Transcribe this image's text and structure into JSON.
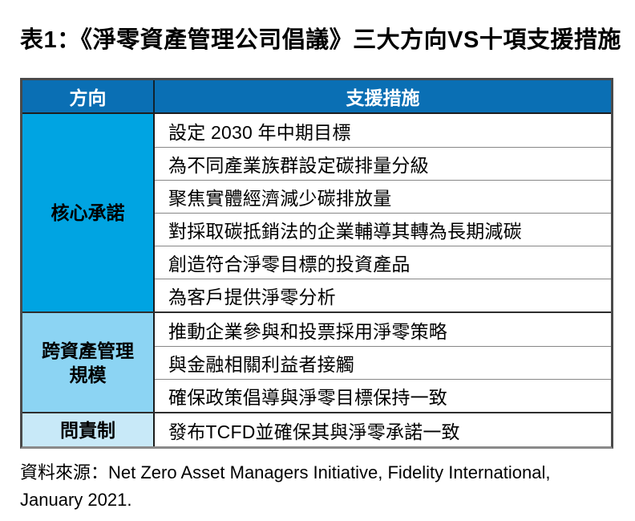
{
  "page": {
    "title": "表1：《淨零資產管理公司倡議》三大方向VS十項支援措施"
  },
  "colors": {
    "header_bg": "#0A6FB4",
    "group_core_bg": "#00A4E2",
    "group_scale_bg": "#8CD4F3",
    "group_account_bg": "#C8E9F8"
  },
  "table": {
    "header_bg": "#0A6FB4",
    "headers": {
      "direction": "方向",
      "measures": "支援措施"
    },
    "groups": [
      {
        "direction": "核心承諾",
        "color": "#00A4E2",
        "measures": [
          "設定 2030 年中期目標",
          "為不同產業族群設定碳排量分級",
          "聚焦實體經濟減少碳排放量",
          "對採取碳抵銷法的企業輔導其轉為長期減碳",
          "創造符合淨零目標的投資產品",
          "為客戶提供淨零分析"
        ]
      },
      {
        "direction": "跨資產管理\n規模",
        "color": "#8CD4F3",
        "measures": [
          "推動企業參與和投票採用淨零策略",
          "與金融相關利益者接觸",
          "確保政策倡導與淨零目標保持一致"
        ]
      },
      {
        "direction": "問責制",
        "color": "#C8E9F8",
        "measures": [
          "發布TCFD並確保其與淨零承諾一致"
        ]
      }
    ]
  },
  "footer": {
    "lines": [
      "資料來源：Net Zero Asset Managers Initiative, Fidelity International,",
      "January 2021."
    ]
  }
}
